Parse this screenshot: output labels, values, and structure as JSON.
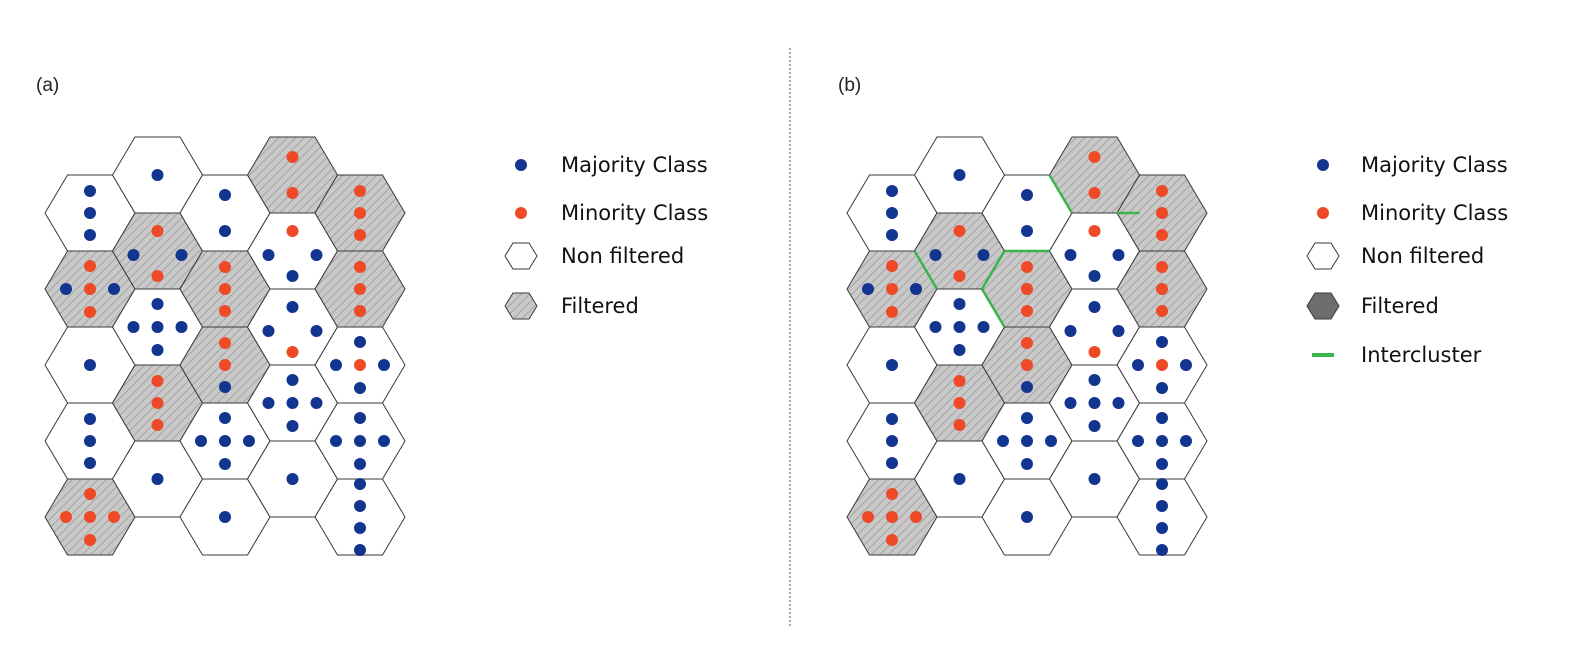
{
  "colors": {
    "majority": "#12358f",
    "minority": "#ee4a28",
    "filtered_fill": "#c9c9c9",
    "hatch": "#9a9a9a",
    "cell_stroke": "#3a3a3a",
    "intercluster": "#3cb44b",
    "filtered_legend_solid": "#6e6e6e",
    "divider": "#555555"
  },
  "panels": [
    {
      "label": "(a)",
      "legend": [
        {
          "type": "majority",
          "text": "Majority Class"
        },
        {
          "type": "minority",
          "text": "Minority Class"
        },
        {
          "type": "non-filtered",
          "text": "Non filtered"
        },
        {
          "type": "filtered-hatched",
          "text": "Filtered"
        }
      ]
    },
    {
      "label": "(b)",
      "legend": [
        {
          "type": "majority",
          "text": "Majority Class"
        },
        {
          "type": "minority",
          "text": "Minority Class"
        },
        {
          "type": "non-filtered",
          "text": "Non filtered"
        },
        {
          "type": "filtered-solid",
          "text": "Filtered"
        },
        {
          "type": "intercluster",
          "text": "Intercluster"
        }
      ],
      "intercluster_edges": [
        {
          "col": 0,
          "row": 1,
          "side": "upper-right"
        },
        {
          "col": 1,
          "row": 1,
          "side": "lower-right"
        },
        {
          "col": 3,
          "row": 0,
          "side": "lower-left"
        },
        {
          "col": 3,
          "row": 0,
          "side": "bottom"
        },
        {
          "col": 2,
          "row": 1,
          "side": "top"
        },
        {
          "col": 2,
          "row": 1,
          "side": "lower-left"
        }
      ]
    }
  ],
  "grid": {
    "columns": 5,
    "cells": [
      {
        "col": 0,
        "row": 0,
        "filtered": false,
        "pattern": "v3",
        "maj": 3,
        "min": 0
      },
      {
        "col": 0,
        "row": 1,
        "filtered": true,
        "pattern": "plus5",
        "maj": 2,
        "min": 3
      },
      {
        "col": 0,
        "row": 2,
        "filtered": false,
        "pattern": "single",
        "maj": 1,
        "min": 0
      },
      {
        "col": 0,
        "row": 3,
        "filtered": false,
        "pattern": "v3",
        "maj": 3,
        "min": 0
      },
      {
        "col": 0,
        "row": 4,
        "filtered": true,
        "pattern": "plus5",
        "maj": 0,
        "min": 5
      },
      {
        "col": 1,
        "row": 0,
        "filtered": false,
        "pattern": "single",
        "maj": 1,
        "min": 0
      },
      {
        "col": 1,
        "row": 1,
        "filtered": true,
        "pattern": "t4",
        "maj": 2,
        "min": 2
      },
      {
        "col": 1,
        "row": 2,
        "filtered": false,
        "pattern": "plus5",
        "maj": 5,
        "min": 0
      },
      {
        "col": 1,
        "row": 3,
        "filtered": true,
        "pattern": "v3",
        "maj": 0,
        "min": 3
      },
      {
        "col": 1,
        "row": 4,
        "filtered": false,
        "pattern": "single",
        "maj": 1,
        "min": 0
      },
      {
        "col": 2,
        "row": 0,
        "filtered": false,
        "pattern": "v2",
        "maj": 2,
        "min": 0
      },
      {
        "col": 2,
        "row": 1,
        "filtered": true,
        "pattern": "v3",
        "maj": 0,
        "min": 3
      },
      {
        "col": 2,
        "row": 2,
        "filtered": true,
        "pattern": "v3",
        "maj": 1,
        "min": 2
      },
      {
        "col": 2,
        "row": 3,
        "filtered": false,
        "pattern": "plus5",
        "maj": 5,
        "min": 0
      },
      {
        "col": 2,
        "row": 4,
        "filtered": false,
        "pattern": "single",
        "maj": 1,
        "min": 0
      },
      {
        "col": 3,
        "row": 0,
        "filtered": true,
        "pattern": "v2",
        "maj": 0,
        "min": 2
      },
      {
        "col": 3,
        "row": 1,
        "filtered": false,
        "pattern": "t4",
        "maj": 3,
        "min": 1
      },
      {
        "col": 3,
        "row": 2,
        "filtered": false,
        "pattern": "t4",
        "maj": 3,
        "min": 1
      },
      {
        "col": 3,
        "row": 3,
        "filtered": false,
        "pattern": "plus5",
        "maj": 5,
        "min": 0
      },
      {
        "col": 3,
        "row": 4,
        "filtered": false,
        "pattern": "single",
        "maj": 1,
        "min": 0
      },
      {
        "col": 4,
        "row": 0,
        "filtered": true,
        "pattern": "v3",
        "maj": 0,
        "min": 3
      },
      {
        "col": 4,
        "row": 1,
        "filtered": true,
        "pattern": "v3",
        "maj": 0,
        "min": 3
      },
      {
        "col": 4,
        "row": 2,
        "filtered": false,
        "pattern": "plus5",
        "maj": 4,
        "min": 1
      },
      {
        "col": 4,
        "row": 3,
        "filtered": false,
        "pattern": "plus5",
        "maj": 5,
        "min": 0
      },
      {
        "col": 4,
        "row": 4,
        "filtered": false,
        "pattern": "v4",
        "maj": 4,
        "min": 0
      }
    ]
  }
}
